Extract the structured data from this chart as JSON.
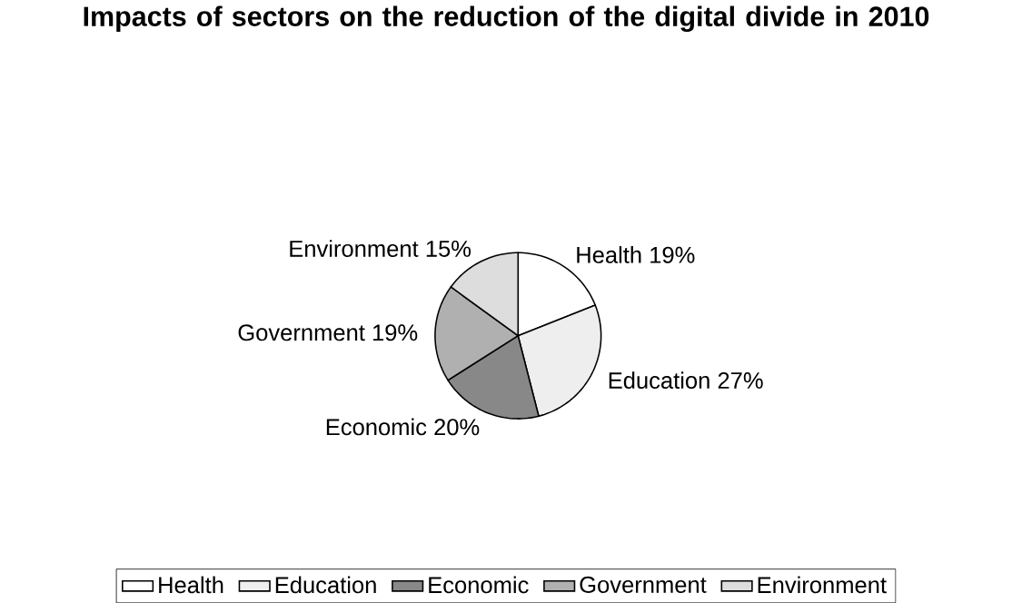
{
  "chart_data": {
    "type": "pie",
    "title": "Impacts of sectors on the reduction of the digital divide in 2010",
    "categories": [
      "Health",
      "Education",
      "Economic",
      "Government",
      "Environment"
    ],
    "values": [
      19,
      27,
      20,
      19,
      15
    ],
    "value_labels": [
      "19%",
      "27%",
      "20%",
      "19%",
      "15%"
    ],
    "colors": [
      "#ffffff",
      "#eeeeee",
      "#888888",
      "#b0b0b0",
      "#dddddd"
    ],
    "legend": "bottom"
  }
}
